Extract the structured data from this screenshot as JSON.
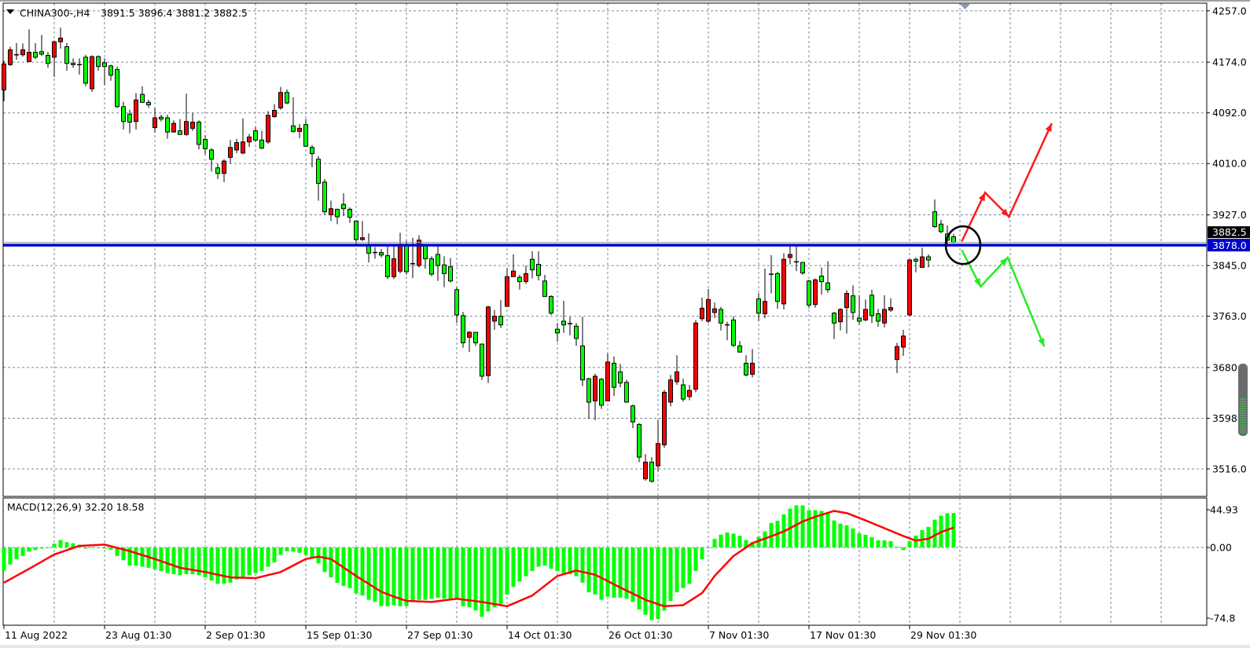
{
  "header": {
    "symbol_timeframe": "CHINA300-,H4",
    "ohlc_text": "3891.5 3896.4 3881.2 3882.5"
  },
  "macd_header": {
    "label": "MACD(12,26,9) 32.20 18.58"
  },
  "colors": {
    "bull_body": "#ff0000",
    "bear_body": "#00ff00",
    "candle_outline": "#000000",
    "grid": "#778899",
    "horizontal_line": "#0000cc",
    "macd_histogram": "#00ff00",
    "macd_signal": "#ff0000",
    "arrow_up_path": "#ff1a1a",
    "arrow_down_path": "#22ee22",
    "circle": "#000000"
  },
  "chart_data": [
    {
      "type": "candlestick",
      "symbol": "CHINA300-",
      "timeframe": "H4",
      "ylim": [
        3500,
        4270
      ],
      "grid": true,
      "price_ticks": [
        "4257.0",
        "4174.0",
        "4092.0",
        "4010.0",
        "3927.0",
        "3845.0",
        "3763.0",
        "3680.0",
        "3598.0",
        "3516.0"
      ],
      "date_ticks": [
        {
          "bar": 0,
          "label": "11 Aug 2022"
        },
        {
          "bar": 16,
          "label": "23 Aug 01:30"
        },
        {
          "bar": 32,
          "label": "2 Sep 01:30"
        },
        {
          "bar": 48,
          "label": "15 Sep 01:30"
        },
        {
          "bar": 64,
          "label": "27 Sep 01:30"
        },
        {
          "bar": 80,
          "label": "14 Oct 01:30"
        },
        {
          "bar": 96,
          "label": "26 Oct 01:30"
        },
        {
          "bar": 112,
          "label": "7 Nov 01:30"
        },
        {
          "bar": 128,
          "label": "17 Nov 01:30"
        },
        {
          "bar": 144,
          "label": "29 Nov 01:30"
        }
      ],
      "ohlc": [
        [
          4129,
          4176,
          4111,
          4171
        ],
        [
          4170,
          4199,
          4168,
          4194
        ],
        [
          4186,
          4205,
          4178,
          4186
        ],
        [
          4186,
          4204,
          4183,
          4194
        ],
        [
          4175,
          4227,
          4175,
          4190
        ],
        [
          4190,
          4205,
          4179,
          4182
        ],
        [
          4191,
          4218,
          4184,
          4187
        ],
        [
          4185,
          4190,
          4165,
          4172
        ],
        [
          4182,
          4209,
          4150,
          4207
        ],
        [
          4207,
          4230,
          4196,
          4213
        ],
        [
          4199,
          4205,
          4160,
          4172
        ],
        [
          4172,
          4180,
          4165,
          4170
        ],
        [
          4170,
          4180,
          4154,
          4169
        ],
        [
          4182,
          4186,
          4135,
          4140
        ],
        [
          4131,
          4185,
          4126,
          4183
        ],
        [
          4183,
          4185,
          4160,
          4167
        ],
        [
          4173,
          4180,
          4137,
          4167
        ],
        [
          4168,
          4170,
          4144,
          4153
        ],
        [
          4162,
          4167,
          4100,
          4102
        ],
        [
          4102,
          4110,
          4065,
          4078
        ],
        [
          4090,
          4097,
          4059,
          4077
        ],
        [
          4078,
          4124,
          4065,
          4113
        ],
        [
          4122,
          4135,
          4109,
          4109
        ],
        [
          4109,
          4113,
          4100,
          4105
        ],
        [
          4068,
          4100,
          4060,
          4084
        ],
        [
          4085,
          4089,
          4078,
          4082
        ],
        [
          4084,
          4089,
          4050,
          4061
        ],
        [
          4061,
          4080,
          4060,
          4075
        ],
        [
          4063,
          4082,
          4057,
          4057
        ],
        [
          4057,
          4123,
          4055,
          4078
        ],
        [
          4067,
          4092,
          4063,
          4077
        ],
        [
          4077,
          4080,
          4033,
          4041
        ],
        [
          4049,
          4056,
          4025,
          4034
        ],
        [
          4032,
          4035,
          3997,
          4017
        ],
        [
          4003,
          4010,
          3985,
          3994
        ],
        [
          3994,
          4017,
          3980,
          4014
        ],
        [
          4020,
          4048,
          4010,
          4036
        ],
        [
          4032,
          4050,
          4027,
          4044
        ],
        [
          4027,
          4083,
          4025,
          4045
        ],
        [
          4045,
          4058,
          4037,
          4053
        ],
        [
          4063,
          4069,
          4045,
          4048
        ],
        [
          4048,
          4063,
          4033,
          4035
        ],
        [
          4045,
          4095,
          4042,
          4088
        ],
        [
          4086,
          4106,
          4084,
          4096
        ],
        [
          4100,
          4134,
          4097,
          4125
        ],
        [
          4125,
          4130,
          4106,
          4108
        ],
        [
          4071,
          4117,
          4060,
          4062
        ],
        [
          4062,
          4074,
          4051,
          4067
        ],
        [
          4073,
          4082,
          4037,
          4038
        ],
        [
          4036,
          4040,
          4004,
          4026
        ],
        [
          4017,
          4022,
          3950,
          3978
        ],
        [
          3980,
          3985,
          3927,
          3932
        ],
        [
          3927,
          3950,
          3917,
          3937
        ],
        [
          3936,
          3937,
          3912,
          3924
        ],
        [
          3944,
          3962,
          3925,
          3937
        ],
        [
          3936,
          3939,
          3914,
          3923
        ],
        [
          3917,
          3917,
          3880,
          3887
        ],
        [
          3887,
          3917,
          3885,
          3890
        ],
        [
          3878,
          3897,
          3850,
          3865
        ],
        [
          3866,
          3875,
          3856,
          3865
        ],
        [
          3866,
          3872,
          3858,
          3862
        ],
        [
          3861,
          3876,
          3823,
          3827
        ],
        [
          3827,
          3880,
          3823,
          3856
        ],
        [
          3836,
          3898,
          3832,
          3878
        ],
        [
          3878,
          3885,
          3830,
          3835
        ],
        [
          3847,
          3890,
          3825,
          3848
        ],
        [
          3845,
          3894,
          3842,
          3886
        ],
        [
          3878,
          3880,
          3840,
          3856
        ],
        [
          3856,
          3860,
          3828,
          3831
        ],
        [
          3863,
          3880,
          3820,
          3845
        ],
        [
          3846,
          3860,
          3810,
          3832
        ],
        [
          3843,
          3857,
          3818,
          3820
        ],
        [
          3806,
          3810,
          3752,
          3765
        ],
        [
          3764,
          3770,
          3712,
          3720
        ],
        [
          3729,
          3739,
          3705,
          3737
        ],
        [
          3737,
          3737,
          3715,
          3720
        ],
        [
          3718,
          3718,
          3660,
          3666
        ],
        [
          3667,
          3780,
          3655,
          3778
        ],
        [
          3755,
          3773,
          3741,
          3763
        ],
        [
          3763,
          3789,
          3744,
          3749
        ],
        [
          3779,
          3840,
          3779,
          3827
        ],
        [
          3827,
          3863,
          3827,
          3836
        ],
        [
          3826,
          3830,
          3806,
          3819
        ],
        [
          3819,
          3845,
          3815,
          3832
        ],
        [
          3855,
          3868,
          3824,
          3838
        ],
        [
          3847,
          3868,
          3821,
          3829
        ],
        [
          3820,
          3830,
          3795,
          3795
        ],
        [
          3795,
          3797,
          3765,
          3768
        ],
        [
          3742,
          3752,
          3722,
          3736
        ],
        [
          3755,
          3788,
          3736,
          3749
        ],
        [
          3751,
          3762,
          3732,
          3751
        ],
        [
          3747,
          3752,
          3715,
          3727
        ],
        [
          3715,
          3762,
          3650,
          3660
        ],
        [
          3662,
          3663,
          3597,
          3624
        ],
        [
          3626,
          3670,
          3595,
          3666
        ],
        [
          3661,
          3663,
          3613,
          3619
        ],
        [
          3626,
          3703,
          3626,
          3689
        ],
        [
          3687,
          3698,
          3634,
          3648
        ],
        [
          3673,
          3686,
          3648,
          3655
        ],
        [
          3656,
          3660,
          3623,
          3624
        ],
        [
          3618,
          3620,
          3582,
          3592
        ],
        [
          3588,
          3590,
          3527,
          3535
        ],
        [
          3500,
          3540,
          3497,
          3527
        ],
        [
          3527,
          3535,
          3494,
          3496
        ],
        [
          3521,
          3595,
          3512,
          3557
        ],
        [
          3555,
          3644,
          3550,
          3640
        ],
        [
          3624,
          3668,
          3617,
          3660
        ],
        [
          3657,
          3700,
          3652,
          3673
        ],
        [
          3652,
          3662,
          3625,
          3629
        ],
        [
          3633,
          3652,
          3627,
          3643
        ],
        [
          3645,
          3757,
          3640,
          3752
        ],
        [
          3759,
          3793,
          3755,
          3776
        ],
        [
          3755,
          3807,
          3752,
          3790
        ],
        [
          3769,
          3785,
          3760,
          3775
        ],
        [
          3774,
          3778,
          3740,
          3752
        ],
        [
          3749,
          3754,
          3724,
          3748
        ],
        [
          3757,
          3763,
          3713,
          3716
        ],
        [
          3715,
          3723,
          3705,
          3705
        ],
        [
          3687,
          3700,
          3666,
          3668
        ],
        [
          3669,
          3710,
          3664,
          3687
        ],
        [
          3791,
          3800,
          3755,
          3768
        ],
        [
          3767,
          3840,
          3760,
          3787
        ],
        [
          3831,
          3862,
          3800,
          3831
        ],
        [
          3832,
          3835,
          3775,
          3787
        ],
        [
          3783,
          3865,
          3774,
          3855
        ],
        [
          3858,
          3876,
          3847,
          3863
        ],
        [
          3851,
          3880,
          3836,
          3851
        ],
        [
          3850,
          3850,
          3830,
          3833
        ],
        [
          3820,
          3822,
          3776,
          3781
        ],
        [
          3782,
          3824,
          3777,
          3822
        ],
        [
          3828,
          3842,
          3798,
          3819
        ],
        [
          3817,
          3852,
          3801,
          3806
        ],
        [
          3768,
          3770,
          3726,
          3752
        ],
        [
          3754,
          3776,
          3740,
          3774
        ],
        [
          3777,
          3805,
          3735,
          3800
        ],
        [
          3796,
          3813,
          3757,
          3769
        ],
        [
          3760,
          3797,
          3750,
          3755
        ],
        [
          3757,
          3790,
          3755,
          3774
        ],
        [
          3797,
          3806,
          3752,
          3764
        ],
        [
          3767,
          3775,
          3746,
          3755
        ],
        [
          3752,
          3797,
          3745,
          3774
        ],
        [
          3773,
          3792,
          3770,
          3777
        ],
        [
          3693,
          3720,
          3671,
          3714
        ],
        [
          3713,
          3741,
          3699,
          3731
        ],
        [
          3765,
          3856,
          3764,
          3854
        ],
        [
          3855,
          3858,
          3834,
          3852
        ],
        [
          3842,
          3874,
          3842,
          3859
        ],
        [
          3859,
          3863,
          3842,
          3854
        ],
        [
          3932,
          3952,
          3906,
          3908
        ],
        [
          3912,
          3919,
          3897,
          3900
        ],
        [
          3896,
          3910,
          3880,
          3886
        ],
        [
          3891.5,
          3896.4,
          3881.2,
          3882.5
        ]
      ],
      "horizontal_line": {
        "price": 3878.0,
        "label": "3878.0"
      },
      "bid_line": {
        "price": 3882.5,
        "label": "3882.5"
      },
      "annotations": {
        "circle_center": {
          "bar": 152.5,
          "price": 3878
        },
        "up_path": [
          [
            152.3,
            3884
          ],
          [
            156,
            3963
          ],
          [
            159.8,
            3924
          ],
          [
            166.6,
            4075
          ]
        ],
        "down_path": [
          [
            152.3,
            3870
          ],
          [
            155.3,
            3811
          ],
          [
            159.6,
            3858
          ],
          [
            165.4,
            3714
          ]
        ]
      }
    },
    {
      "type": "bar+line",
      "name": "MACD(12,26,9)",
      "ylim": [
        -85,
        52
      ],
      "tick_labels": [
        "44.93",
        "0.00",
        "-74.8"
      ],
      "histogram": [
        -22,
        -16,
        -11,
        -8,
        -4,
        -2.5,
        -1,
        0,
        3.5,
        7,
        5,
        4,
        2.5,
        -1,
        0,
        -0.5,
        -1,
        -2,
        -8,
        -12,
        -17,
        -17,
        -18,
        -19,
        -20.5,
        -22,
        -24,
        -25,
        -26,
        -25,
        -25,
        -26,
        -28,
        -31,
        -34,
        -34,
        -33,
        -30,
        -29,
        -26,
        -24,
        -22,
        -18,
        -14,
        -7,
        -3.5,
        -4,
        -5,
        -7,
        -10,
        -15,
        -23,
        -28,
        -33,
        -36,
        -38,
        -43,
        -45,
        -49,
        -51,
        -55,
        -55,
        -54,
        -55,
        -55,
        -50,
        -49,
        -49,
        -48,
        -47,
        -48,
        -48,
        -49,
        -55,
        -56,
        -59,
        -65,
        -60,
        -56,
        -53,
        -44,
        -37,
        -32,
        -27,
        -22,
        -18,
        -17,
        -20,
        -22,
        -24,
        -25,
        -27,
        -33,
        -42,
        -44,
        -49,
        -46,
        -47,
        -47,
        -48,
        -51,
        -58,
        -63,
        -68,
        -67,
        -59,
        -50,
        -42,
        -38,
        -34,
        -22,
        -11,
        -0.5,
        8,
        12,
        14,
        13,
        11,
        7,
        5,
        10,
        15,
        23,
        25,
        31,
        36.4,
        39.4,
        39.4,
        34.9,
        34.9,
        34.2,
        32.2,
        25.3,
        22.3,
        20.8,
        17.8,
        13.4,
        11.9,
        9.7,
        6.7,
        6.7,
        5.9,
        0.7,
        -2.5,
        5.9,
        11.1,
        16.3,
        19.3,
        26,
        29.7,
        32,
        32.2
      ],
      "signal_points": [
        [
          0,
          -33
        ],
        [
          4,
          -20
        ],
        [
          8,
          -6.6
        ],
        [
          12,
          1.5
        ],
        [
          16,
          2.7
        ],
        [
          20,
          -3.4
        ],
        [
          24,
          -10.8
        ],
        [
          28,
          -19
        ],
        [
          32,
          -23
        ],
        [
          36,
          -28
        ],
        [
          40,
          -28.7
        ],
        [
          44,
          -23
        ],
        [
          48,
          -10.8
        ],
        [
          50,
          -8.6
        ],
        [
          52,
          -10.8
        ],
        [
          56,
          -26.7
        ],
        [
          60,
          -41.5
        ],
        [
          62,
          -46
        ],
        [
          64,
          -50
        ],
        [
          68,
          -51
        ],
        [
          72,
          -48
        ],
        [
          76,
          -51
        ],
        [
          80,
          -55
        ],
        [
          84,
          -45
        ],
        [
          88,
          -26.7
        ],
        [
          91,
          -21.6
        ],
        [
          94,
          -25.5
        ],
        [
          98,
          -37.5
        ],
        [
          102,
          -49
        ],
        [
          105,
          -55
        ],
        [
          108,
          -54
        ],
        [
          111,
          -42.7
        ],
        [
          113,
          -26.7
        ],
        [
          116,
          -8
        ],
        [
          119,
          4
        ],
        [
          122,
          10.5
        ],
        [
          124,
          15
        ],
        [
          127,
          24.3
        ],
        [
          129,
          28.7
        ],
        [
          132,
          34.2
        ],
        [
          134,
          32.2
        ],
        [
          137,
          25.3
        ],
        [
          140,
          18
        ],
        [
          143,
          10.7
        ],
        [
          145,
          6.4
        ],
        [
          147,
          8.2
        ],
        [
          149,
          14.4
        ],
        [
          151,
          18.58
        ]
      ]
    }
  ]
}
